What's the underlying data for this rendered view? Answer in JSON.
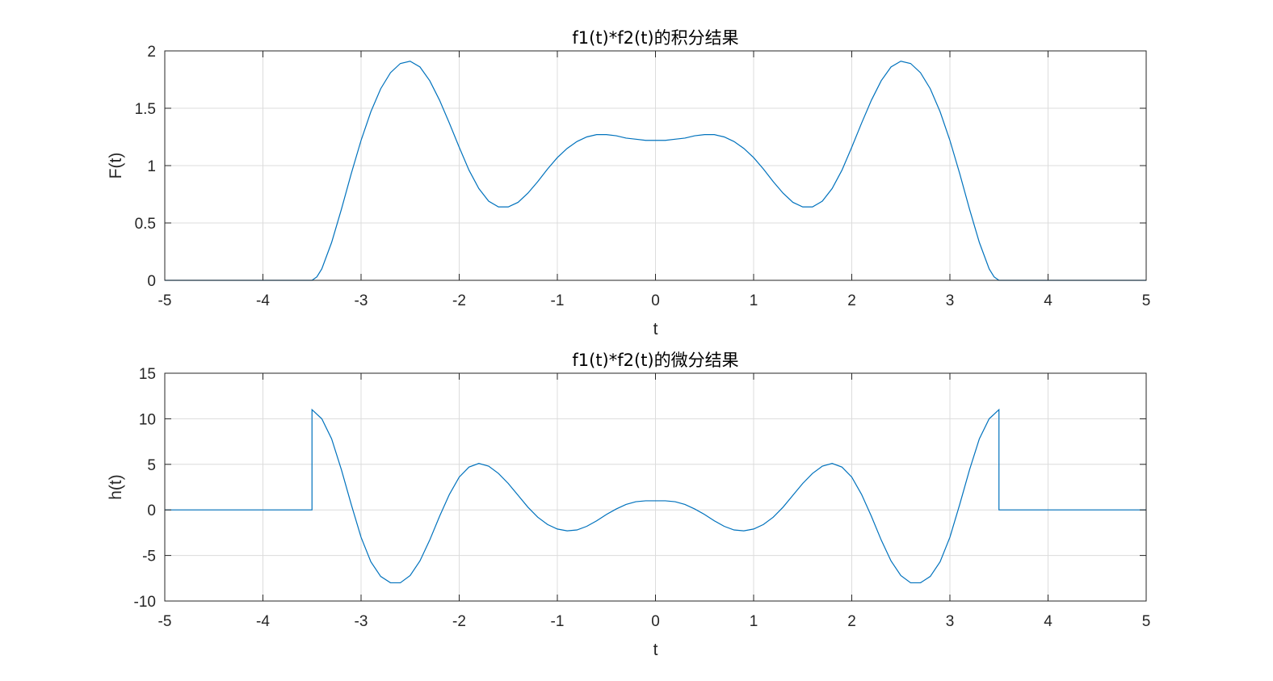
{
  "chart_data": [
    {
      "type": "line",
      "title": "f1(t)*f2(t)的积分结果",
      "xlabel": "t",
      "ylabel": "F(t)",
      "xlim": [
        -5,
        5
      ],
      "ylim": [
        0,
        2
      ],
      "xticks": [
        -5,
        -4,
        -3,
        -2,
        -1,
        0,
        1,
        2,
        3,
        4,
        5
      ],
      "yticks": [
        0,
        0.5,
        1,
        1.5,
        2
      ],
      "xtick_labels": [
        "-5",
        "-4",
        "-3",
        "-2",
        "-1",
        "0",
        "1",
        "2",
        "3",
        "4",
        "5"
      ],
      "ytick_labels": [
        "0",
        "0.5",
        "1",
        "1.5",
        "2"
      ],
      "grid": true,
      "color": "#0072BD",
      "series": [
        {
          "x": [
            -5,
            -3.5,
            -3.45,
            -3.4,
            -3.3,
            -3.2,
            -3.1,
            -3.0,
            -2.9,
            -2.8,
            -2.7,
            -2.6,
            -2.5,
            -2.4,
            -2.3,
            -2.2,
            -2.1,
            -2.0,
            -1.9,
            -1.8,
            -1.7,
            -1.6,
            -1.5,
            -1.4,
            -1.3,
            -1.2,
            -1.1,
            -1.0,
            -0.9,
            -0.8,
            -0.7,
            -0.6,
            -0.5,
            -0.4,
            -0.3,
            -0.2,
            -0.1,
            0.0,
            0.1,
            0.2,
            0.3,
            0.4,
            0.5,
            0.6,
            0.7,
            0.8,
            0.9,
            1.0,
            1.1,
            1.2,
            1.3,
            1.4,
            1.5,
            1.6,
            1.7,
            1.8,
            1.9,
            2.0,
            2.1,
            2.2,
            2.3,
            2.4,
            2.5,
            2.6,
            2.7,
            2.8,
            2.9,
            3.0,
            3.1,
            3.2,
            3.3,
            3.4,
            3.45,
            3.5,
            5
          ],
          "y": [
            0,
            0,
            0.03,
            0.1,
            0.33,
            0.62,
            0.93,
            1.22,
            1.47,
            1.67,
            1.81,
            1.89,
            1.91,
            1.86,
            1.74,
            1.57,
            1.37,
            1.16,
            0.96,
            0.8,
            0.69,
            0.64,
            0.64,
            0.68,
            0.76,
            0.86,
            0.97,
            1.07,
            1.15,
            1.21,
            1.25,
            1.27,
            1.27,
            1.26,
            1.24,
            1.23,
            1.22,
            1.22,
            1.22,
            1.23,
            1.24,
            1.26,
            1.27,
            1.27,
            1.25,
            1.21,
            1.15,
            1.07,
            0.97,
            0.86,
            0.76,
            0.68,
            0.64,
            0.64,
            0.69,
            0.8,
            0.96,
            1.16,
            1.37,
            1.57,
            1.74,
            1.86,
            1.91,
            1.89,
            1.81,
            1.67,
            1.47,
            1.22,
            0.93,
            0.62,
            0.33,
            0.1,
            0.03,
            0,
            0
          ]
        }
      ]
    },
    {
      "type": "line",
      "title": "f1(t)*f2(t)的微分结果",
      "xlabel": "t",
      "ylabel": "h(t)",
      "xlim": [
        -5,
        5
      ],
      "ylim": [
        -10,
        15
      ],
      "xticks": [
        -5,
        -4,
        -3,
        -2,
        -1,
        0,
        1,
        2,
        3,
        4,
        5
      ],
      "yticks": [
        -10,
        -5,
        0,
        5,
        10,
        15
      ],
      "xtick_labels": [
        "-5",
        "-4",
        "-3",
        "-2",
        "-1",
        "0",
        "1",
        "2",
        "3",
        "4",
        "5"
      ],
      "ytick_labels": [
        "-10",
        "-5",
        "0",
        "5",
        "10",
        "15"
      ],
      "grid": true,
      "color": "#0072BD",
      "series": [
        {
          "x": [
            -5,
            -3.5,
            -3.5,
            -3.4,
            -3.3,
            -3.2,
            -3.1,
            -3.0,
            -2.9,
            -2.8,
            -2.7,
            -2.6,
            -2.5,
            -2.4,
            -2.3,
            -2.2,
            -2.1,
            -2.0,
            -1.9,
            -1.8,
            -1.7,
            -1.6,
            -1.5,
            -1.4,
            -1.3,
            -1.2,
            -1.1,
            -1.0,
            -0.9,
            -0.8,
            -0.7,
            -0.6,
            -0.5,
            -0.4,
            -0.3,
            -0.2,
            -0.1,
            0.0,
            0.1,
            0.2,
            0.3,
            0.4,
            0.5,
            0.6,
            0.7,
            0.8,
            0.9,
            1.0,
            1.1,
            1.2,
            1.3,
            1.4,
            1.5,
            1.6,
            1.7,
            1.8,
            1.9,
            2.0,
            2.1,
            2.2,
            2.3,
            2.4,
            2.5,
            2.6,
            2.7,
            2.8,
            2.9,
            3.0,
            3.1,
            3.2,
            3.3,
            3.4,
            3.5,
            3.5,
            5
          ],
          "y": [
            0,
            0,
            11.0,
            10.0,
            7.8,
            4.4,
            0.6,
            -3.0,
            -5.7,
            -7.3,
            -8.0,
            -8.0,
            -7.2,
            -5.6,
            -3.3,
            -0.7,
            1.7,
            3.6,
            4.7,
            5.1,
            4.8,
            4.0,
            2.9,
            1.6,
            0.3,
            -0.8,
            -1.6,
            -2.1,
            -2.3,
            -2.2,
            -1.8,
            -1.2,
            -0.5,
            0.1,
            0.6,
            0.9,
            1.0,
            1.0,
            1.0,
            0.9,
            0.6,
            0.1,
            -0.5,
            -1.2,
            -1.8,
            -2.2,
            -2.3,
            -2.1,
            -1.6,
            -0.8,
            0.3,
            1.6,
            2.9,
            4.0,
            4.8,
            5.1,
            4.7,
            3.6,
            1.7,
            -0.7,
            -3.3,
            -5.6,
            -7.2,
            -8.0,
            -8.0,
            -7.3,
            -5.7,
            -3.0,
            0.6,
            4.4,
            7.8,
            10.0,
            11.0,
            0,
            0
          ]
        }
      ]
    }
  ]
}
